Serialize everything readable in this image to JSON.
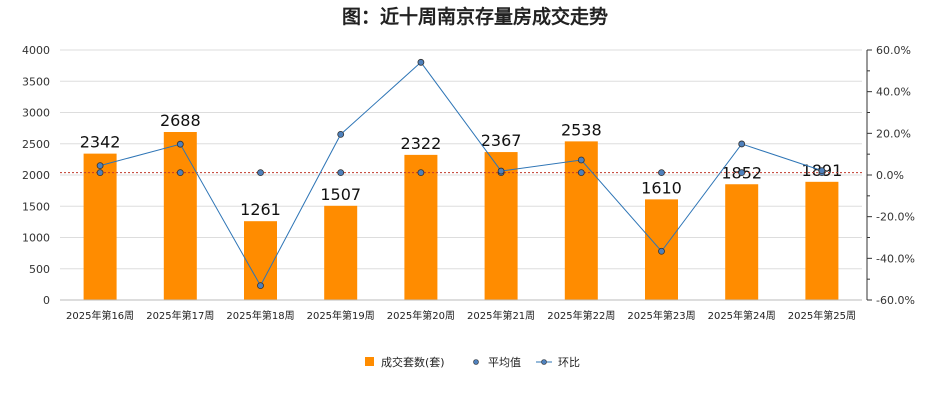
{
  "chart_data": {
    "type": "bar",
    "title": "图：近十周南京存量房成交走势",
    "categories": [
      "2025年第16周",
      "2025年第17周",
      "2025年第18周",
      "2025年第19周",
      "2025年第20周",
      "2025年第21周",
      "2025年第22周",
      "2025年第23周",
      "2025年第24周",
      "2025年第25周"
    ],
    "series": [
      {
        "name": "成交套数(套)",
        "type": "bar",
        "axis": "left",
        "color": "#ff8c00",
        "values": [
          2342,
          2688,
          1261,
          1507,
          2322,
          2367,
          2538,
          1610,
          1852,
          1891
        ]
      },
      {
        "name": "平均值",
        "type": "line",
        "axis": "left",
        "color": "#c0392b",
        "marker_color": "#4f81bd",
        "values": [
          2038,
          2038,
          2038,
          2038,
          2038,
          2038,
          2038,
          2038,
          2038,
          2038
        ]
      },
      {
        "name": "环比",
        "type": "line",
        "axis": "right",
        "color": "#2e75b6",
        "marker_color": "#4f81bd",
        "values": [
          4.5,
          14.8,
          -53.1,
          19.5,
          54.1,
          1.9,
          7.2,
          -36.6,
          14.9,
          2.1
        ]
      }
    ],
    "y_left": {
      "min": 0,
      "max": 4000,
      "ticks": [
        0,
        500,
        1000,
        1500,
        2000,
        2500,
        3000,
        3500,
        4000
      ],
      "tick_labels": [
        "0",
        "500",
        "1000",
        "1500",
        "2000",
        "2500",
        "3000",
        "3500",
        "4000"
      ]
    },
    "y_right": {
      "min": -60,
      "max": 60,
      "ticks": [
        -60,
        -40,
        -20,
        0,
        20,
        40,
        60
      ],
      "tick_labels": [
        "-60.0%",
        "-40.0%",
        "-20.0%",
        "0.0%",
        "20.0%",
        "40.0%",
        "60.0%"
      ]
    },
    "grid": true,
    "legend_position": "bottom"
  }
}
